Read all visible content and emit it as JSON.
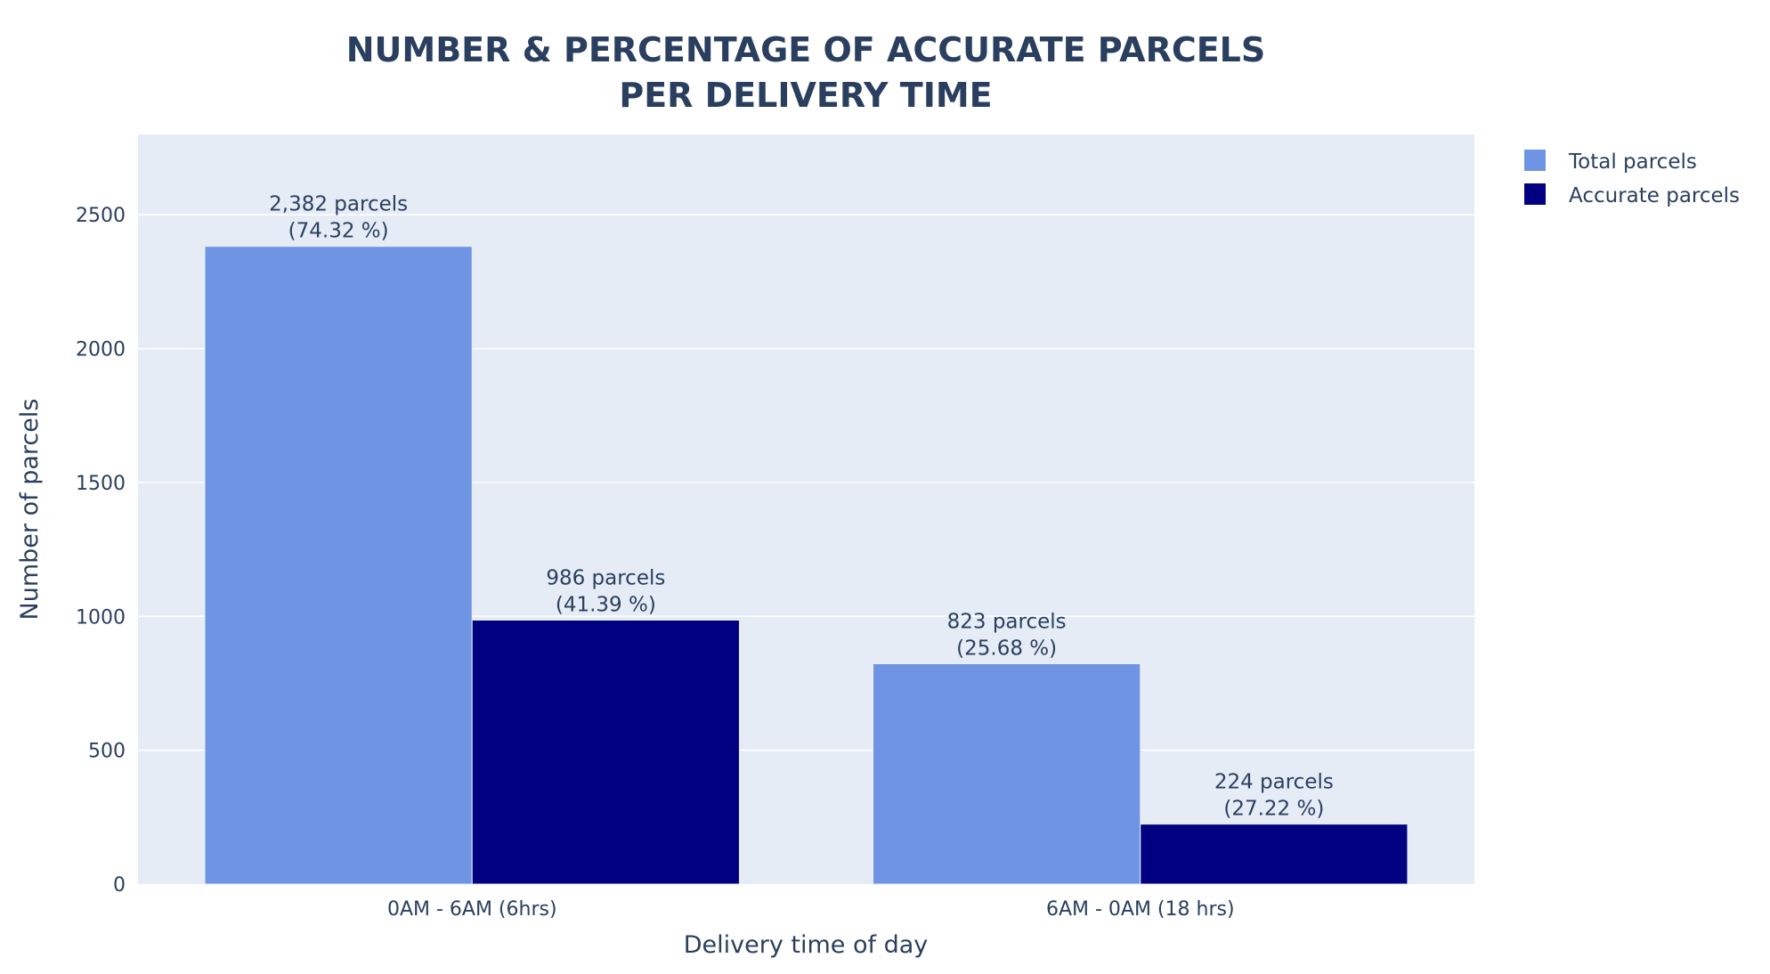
{
  "chart_data": {
    "type": "bar",
    "title_lines": [
      "NUMBER & PERCENTAGE OF ACCURATE PARCELS",
      "PER DELIVERY TIME"
    ],
    "xlabel": "Delivery time of day",
    "ylabel": "Number of parcels",
    "categories": [
      "0AM - 6AM (6hrs)",
      "6AM - 0AM (18 hrs)"
    ],
    "ylim": [
      0,
      2800
    ],
    "yticks": [
      0,
      500,
      1000,
      1500,
      2000,
      2500
    ],
    "grid": true,
    "legend_position": "top-right",
    "plot_background": "#e5ecf6",
    "series": [
      {
        "name": "Total parcels",
        "color": "#6f94e4",
        "values": [
          2382,
          823
        ],
        "labels": [
          [
            "2,382 parcels",
            "(74.32 %)"
          ],
          [
            "823 parcels",
            "(25.68 %)"
          ]
        ]
      },
      {
        "name": "Accurate parcels",
        "color": "#000080",
        "values": [
          986,
          224
        ],
        "labels": [
          [
            "986 parcels",
            "(41.39 %)"
          ],
          [
            "224 parcels",
            "(27.22 %)"
          ]
        ]
      }
    ]
  }
}
